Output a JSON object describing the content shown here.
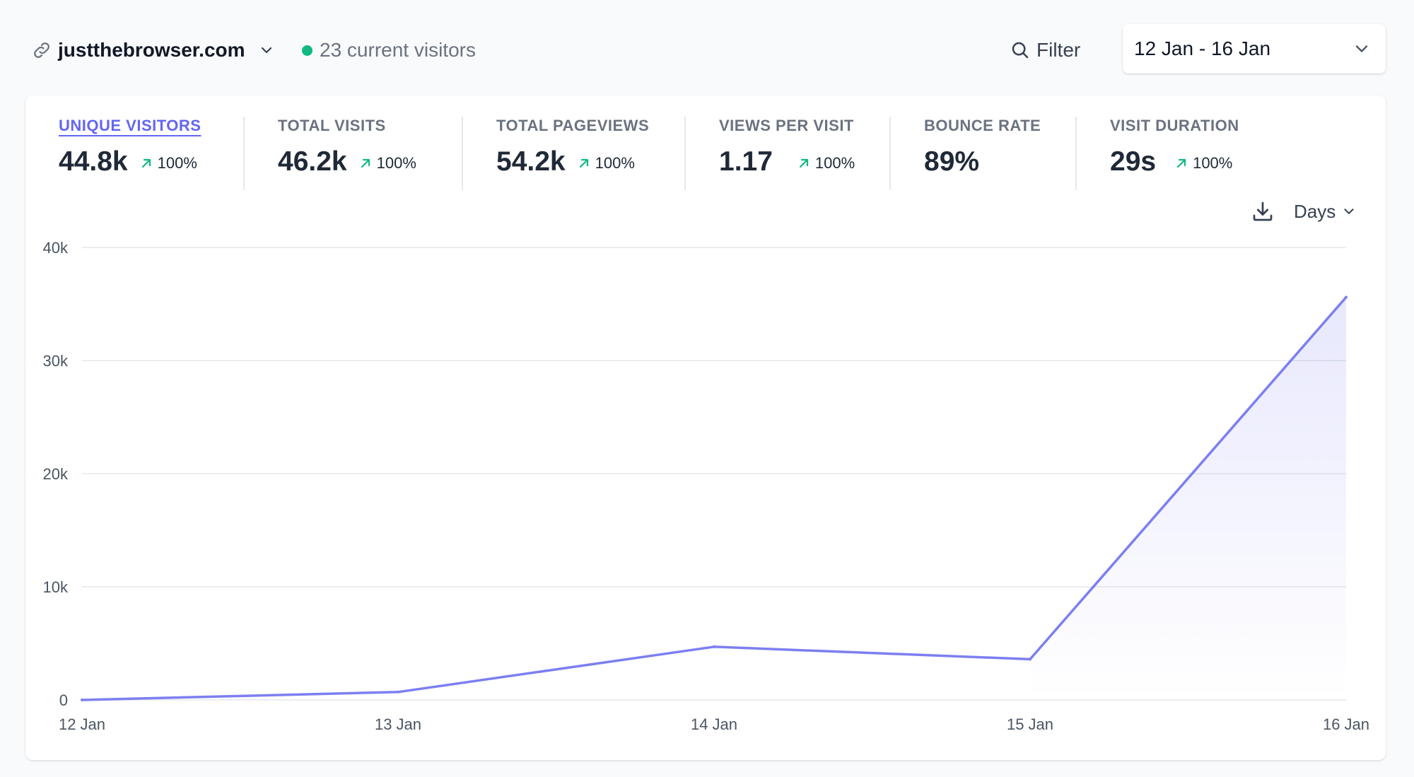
{
  "header": {
    "site_name": "justthebrowser.com",
    "current_visitors": "23 current visitors",
    "filter_label": "Filter",
    "date_range": "12 Jan - 16 Jan",
    "icons": {
      "site": "link-icon",
      "site_dropdown": "chevron-down-icon",
      "live": "green-dot-icon",
      "filter": "search-icon",
      "date_dropdown": "chevron-down-icon"
    }
  },
  "stats": [
    {
      "label": "UNIQUE VISITORS",
      "value": "44.8k",
      "change": "100%",
      "active": true
    },
    {
      "label": "TOTAL VISITS",
      "value": "46.2k",
      "change": "100%"
    },
    {
      "label": "TOTAL PAGEVIEWS",
      "value": "54.2k",
      "change": "100%"
    },
    {
      "label": "VIEWS PER VISIT",
      "value": "1.17",
      "change": "100%"
    },
    {
      "label": "BOUNCE RATE",
      "value": "89%"
    },
    {
      "label": "VISIT DURATION",
      "value": "29s",
      "change": "100%"
    }
  ],
  "controls": {
    "interval_label": "Days",
    "icons": {
      "download": "download-icon",
      "interval_dropdown": "chevron-down-icon",
      "trend": "arrow-up-right-icon"
    }
  },
  "colors": {
    "accent": "#6366f1",
    "line": "#7c7ff0",
    "positive": "#10b981",
    "grid": "#e5e7eb"
  },
  "chart_data": {
    "type": "area",
    "x": [
      "12 Jan",
      "13 Jan",
      "14 Jan",
      "15 Jan",
      "16 Jan"
    ],
    "series": [
      {
        "values": [
          0,
          700,
          4700,
          3600,
          35600
        ]
      }
    ],
    "ylim": [
      0,
      40000
    ],
    "y_ticks": [
      "0",
      "10k",
      "20k",
      "30k",
      "40k"
    ],
    "y_tick_values": [
      0,
      10000,
      20000,
      30000,
      40000
    ],
    "grid": true,
    "fill": "last-segment"
  }
}
